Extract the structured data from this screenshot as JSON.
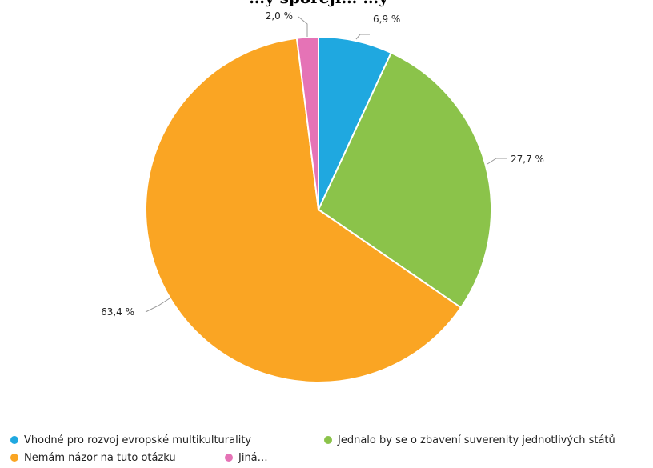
{
  "chart_data": {
    "type": "pie",
    "title": "…y sporejí… …y",
    "categories": [
      "Vhodné pro rozvoj evropské multikulturality",
      "Jednalo by se o zbavení suverenity jednotlivých států",
      "Nemám názor na tuto otázku",
      "Jiná…"
    ],
    "values": [
      6.9,
      27.7,
      63.4,
      2.0
    ],
    "data_labels": [
      "6,9 %",
      "27,7 %",
      "63,4 %",
      "2,0 %"
    ],
    "colors": [
      "#1fa8e0",
      "#8bc34a",
      "#faa523",
      "#e573b6"
    ],
    "legend_position": "bottom"
  }
}
